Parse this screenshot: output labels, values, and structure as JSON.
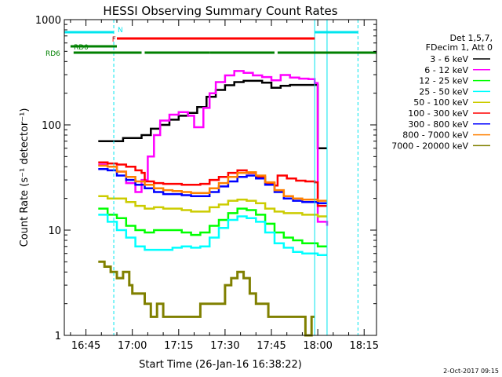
{
  "chart_data": {
    "type": "line",
    "title": "HESSI Observing Summary Count Rates",
    "xlabel": "Start Time (26-Jan-16 16:38:22)",
    "ylabel": "Count Rate (s⁻¹ detector⁻¹)",
    "yscale": "log",
    "xlim": [
      "16:38",
      "18:19"
    ],
    "ylim": [
      1,
      1000
    ],
    "x_ticks": [
      "16:45",
      "17:00",
      "17:15",
      "17:30",
      "17:45",
      "18:00",
      "18:15"
    ],
    "y_ticks": [
      "1",
      "10",
      "100",
      "1000"
    ],
    "grid": false,
    "legend_placement": "right",
    "legend_header": [
      "Det 1,5,7,",
      "FDecim 1, Att 0"
    ],
    "footer": "2-Oct-2017 09:15",
    "vertical_markers": [
      {
        "time": "16:38",
        "style": "solid",
        "color": "#00e5ee"
      },
      {
        "time": "16:54",
        "style": "dashed",
        "color": "#00e5ee"
      },
      {
        "time": "17:59",
        "style": "solid",
        "color": "#00e5ee"
      },
      {
        "time": "18:03",
        "style": "solid",
        "color": "#00e5ee"
      },
      {
        "time": "18:13",
        "style": "dashed",
        "color": "#00e5ee"
      }
    ],
    "flags": [
      {
        "label": "N",
        "color": "#00e5ee",
        "segments": [
          [
            "16:38",
            "16:54"
          ],
          [
            "17:59",
            "18:13"
          ]
        ]
      },
      {
        "label": "F",
        "color": "#ff0000",
        "segments": [
          [
            "16:55",
            "17:59"
          ]
        ]
      },
      {
        "label": "RD0",
        "color": "#008000",
        "segments": [
          [
            "16:40",
            "16:55"
          ]
        ]
      },
      {
        "label": "RD6",
        "color": "#008000",
        "segments": [
          [
            "16:41",
            "17:03"
          ],
          [
            "17:04",
            "17:25"
          ],
          [
            "17:25",
            "17:46"
          ],
          [
            "17:47",
            "18:19"
          ]
        ]
      }
    ],
    "series": [
      {
        "name": "3 - 6 keV",
        "color": "#000000",
        "x": [
          "16:49",
          "16:54",
          "16:57",
          "17:00",
          "17:03",
          "17:06",
          "17:09",
          "17:12",
          "17:15",
          "17:18",
          "17:21",
          "17:24",
          "17:27",
          "17:30",
          "17:33",
          "17:36",
          "17:39",
          "17:42",
          "17:45",
          "17:48",
          "17:51",
          "17:54",
          "17:57",
          "17:59",
          "18:00",
          "18:03"
        ],
        "values": [
          70,
          70,
          75,
          75,
          80,
          92,
          100,
          112,
          122,
          130,
          148,
          185,
          215,
          238,
          255,
          262,
          262,
          252,
          225,
          235,
          240,
          240,
          240,
          240,
          60,
          60
        ]
      },
      {
        "name": "6 - 12 keV",
        "color": "#ff00ff",
        "x": [
          "16:49",
          "16:52",
          "16:55",
          "16:58",
          "17:01",
          "17:03",
          "17:05",
          "17:07",
          "17:09",
          "17:12",
          "17:15",
          "17:18",
          "17:20",
          "17:23",
          "17:25",
          "17:27",
          "17:30",
          "17:33",
          "17:36",
          "17:39",
          "17:42",
          "17:45",
          "17:48",
          "17:51",
          "17:54",
          "17:57",
          "17:59",
          "18:00",
          "18:03"
        ],
        "values": [
          42,
          40,
          36,
          28,
          23,
          30,
          50,
          80,
          110,
          125,
          132,
          122,
          95,
          145,
          200,
          255,
          295,
          325,
          312,
          295,
          285,
          265,
          298,
          282,
          275,
          272,
          250,
          12,
          11
        ]
      },
      {
        "name": "12 - 25 keV",
        "color": "#00ff00",
        "x": [
          "16:49",
          "16:52",
          "16:55",
          "16:58",
          "17:01",
          "17:04",
          "17:07",
          "17:10",
          "17:13",
          "17:16",
          "17:19",
          "17:22",
          "17:25",
          "17:28",
          "17:31",
          "17:34",
          "17:37",
          "17:40",
          "17:43",
          "17:46",
          "17:49",
          "17:52",
          "17:55",
          "17:58",
          "18:00",
          "18:03"
        ],
        "values": [
          16,
          14,
          13,
          11,
          10,
          9.5,
          10,
          10,
          10,
          9.5,
          9,
          9.5,
          11,
          12.5,
          14.5,
          16,
          15.5,
          14,
          11.5,
          9.5,
          8.5,
          8,
          7.5,
          7.5,
          7,
          7
        ]
      },
      {
        "name": "25 - 50 keV",
        "color": "#00ffff",
        "x": [
          "16:49",
          "16:52",
          "16:55",
          "16:58",
          "17:01",
          "17:04",
          "17:07",
          "17:10",
          "17:13",
          "17:16",
          "17:19",
          "17:22",
          "17:25",
          "17:28",
          "17:31",
          "17:34",
          "17:37",
          "17:40",
          "17:43",
          "17:46",
          "17:49",
          "17:52",
          "17:55",
          "17:58",
          "18:00",
          "18:03"
        ],
        "values": [
          14,
          12,
          10,
          8.5,
          7,
          6.5,
          6.5,
          6.5,
          6.8,
          7,
          6.8,
          7,
          8.5,
          10.5,
          12.5,
          13.5,
          13,
          12,
          9.5,
          7.5,
          6.8,
          6.2,
          6,
          6,
          5.8,
          5.8
        ]
      },
      {
        "name": "50 - 100 keV",
        "color": "#cccc00",
        "x": [
          "16:49",
          "16:52",
          "16:55",
          "16:58",
          "17:01",
          "17:04",
          "17:07",
          "17:10",
          "17:13",
          "17:16",
          "17:19",
          "17:22",
          "17:25",
          "17:28",
          "17:31",
          "17:34",
          "17:37",
          "17:40",
          "17:43",
          "17:46",
          "17:49",
          "17:52",
          "17:55",
          "17:58",
          "18:00",
          "18:03"
        ],
        "values": [
          21,
          20,
          20,
          18.5,
          17,
          16,
          16.5,
          16,
          16,
          15.5,
          15,
          15,
          16.5,
          17.5,
          19,
          19.5,
          19,
          18,
          16,
          15,
          14.5,
          14.5,
          14,
          14,
          13.5,
          13.5
        ]
      },
      {
        "name": "100 - 300 keV",
        "color": "#ff0000",
        "x": [
          "16:49",
          "16:52",
          "16:55",
          "16:58",
          "17:01",
          "17:03",
          "17:04",
          "17:07",
          "17:10",
          "17:13",
          "17:16",
          "17:19",
          "17:22",
          "17:25",
          "17:28",
          "17:31",
          "17:34",
          "17:37",
          "17:40",
          "17:43",
          "17:46",
          "17:47",
          "17:50",
          "17:53",
          "17:56",
          "17:59",
          "18:00",
          "18:03"
        ],
        "values": [
          44,
          43,
          42,
          40,
          37,
          35,
          29,
          28,
          27.5,
          27.5,
          27,
          27,
          27.5,
          30,
          32,
          35,
          37,
          35,
          32,
          28,
          26.5,
          33,
          31,
          29.5,
          29,
          28.5,
          17,
          17
        ]
      },
      {
        "name": "300 - 800 keV",
        "color": "#0000ff",
        "x": [
          "16:49",
          "16:52",
          "16:55",
          "16:58",
          "17:01",
          "17:04",
          "17:07",
          "17:10",
          "17:13",
          "17:16",
          "17:19",
          "17:22",
          "17:25",
          "17:28",
          "17:31",
          "17:34",
          "17:37",
          "17:40",
          "17:43",
          "17:46",
          "17:49",
          "17:52",
          "17:55",
          "17:58",
          "18:00",
          "18:03"
        ],
        "values": [
          38,
          37,
          33,
          30,
          27,
          25,
          23,
          22,
          22,
          21.5,
          21,
          21,
          23,
          26,
          29,
          32,
          33,
          31,
          27,
          23,
          20,
          19,
          18.5,
          18.5,
          18,
          18
        ]
      },
      {
        "name": "800 - 7000 keV",
        "color": "#ff8000",
        "x": [
          "16:49",
          "16:52",
          "16:55",
          "16:58",
          "17:01",
          "17:04",
          "17:07",
          "17:10",
          "17:13",
          "17:16",
          "17:19",
          "17:22",
          "17:25",
          "17:28",
          "17:31",
          "17:34",
          "17:37",
          "17:40",
          "17:43",
          "17:46",
          "17:49",
          "17:52",
          "17:55",
          "17:58",
          "18:00",
          "18:03"
        ],
        "values": [
          41,
          40,
          36,
          32,
          29,
          27,
          25,
          24,
          23.5,
          23,
          22.5,
          22.5,
          25,
          28,
          32,
          35,
          35.5,
          33,
          28.5,
          24,
          21,
          20,
          19.5,
          19.5,
          19,
          19
        ]
      },
      {
        "name": "7000 - 20000 keV",
        "color": "#808000",
        "x": [
          "16:49",
          "16:51",
          "16:53",
          "16:55",
          "16:57",
          "16:59",
          "17:00",
          "17:02",
          "17:04",
          "17:06",
          "17:08",
          "17:10",
          "17:12",
          "17:14",
          "17:16",
          "17:18",
          "17:20",
          "17:22",
          "17:24",
          "17:26",
          "17:28",
          "17:30",
          "17:32",
          "17:34",
          "17:36",
          "17:38",
          "17:40",
          "17:42",
          "17:44",
          "17:46",
          "17:48",
          "17:50",
          "17:52",
          "17:54",
          "17:56",
          "17:58",
          "17:59"
        ],
        "values": [
          5,
          4.5,
          4,
          3.5,
          4,
          3,
          2.5,
          2.5,
          2,
          1.5,
          2,
          1.5,
          1.5,
          1.5,
          1.5,
          1.5,
          1.5,
          2,
          2,
          2,
          2,
          3,
          3.5,
          4,
          3.5,
          2.5,
          2,
          2,
          1.5,
          1.5,
          1.5,
          1.5,
          1.5,
          1.5,
          1,
          1.5,
          1.5
        ]
      }
    ]
  }
}
